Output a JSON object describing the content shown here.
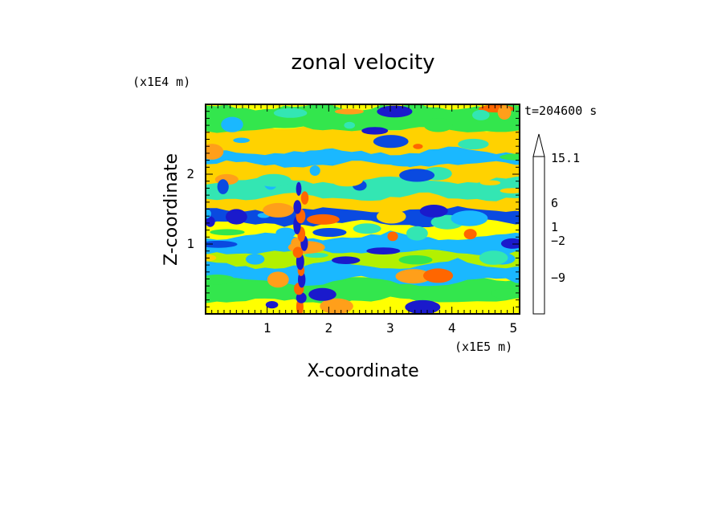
{
  "chart_data": {
    "type": "heatmap",
    "title": "zonal velocity",
    "xlabel": "X-coordinate",
    "ylabel": "Z-coordinate",
    "x_unit": "(x1E5 m)",
    "y_unit": "(x1E4 m)",
    "time_label": "t=204600 s",
    "xlim": [
      0,
      5.1
    ],
    "ylim": [
      0,
      3.0
    ],
    "x_ticks": [
      "1",
      "2",
      "3",
      "4",
      "5"
    ],
    "y_ticks": [
      "1",
      "2"
    ],
    "colorbar": {
      "tick_labels": [
        "15.1",
        "6",
        "1",
        "−2",
        "−9"
      ],
      "colors": [
        "#ff33bb",
        "#cc2299",
        "#99148f",
        "#66107a",
        "#1a1acc",
        "#0a4ae0",
        "#1ab8ff",
        "#33e6b3",
        "#33e64d",
        "#b3f000",
        "#ffff00",
        "#ffd200",
        "#ff9f1a",
        "#ff6600",
        "#ff2200",
        "#ff6c6c",
        "#ff9a9a",
        "#ffc4c4"
      ]
    },
    "bands_y": [
      0.35,
      0.65,
      0.9,
      1.05,
      1.3,
      1.45,
      1.65,
      1.85,
      2.1,
      2.3,
      2.5,
      2.8
    ],
    "bands_level": [
      8,
      6,
      9,
      6,
      10,
      5,
      11,
      7,
      11,
      6,
      11,
      8
    ]
  }
}
